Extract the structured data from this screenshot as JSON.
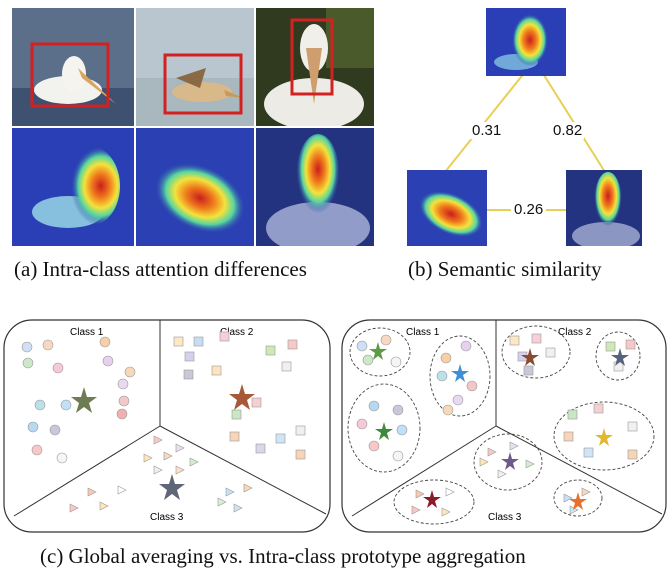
{
  "figure": {
    "panel_a": {
      "caption": "(a)  Intra-class attention differences",
      "images": [
        {
          "name": "pelicans-photo-1",
          "kind": "photo"
        },
        {
          "name": "pelicans-photo-2",
          "kind": "photo"
        },
        {
          "name": "pelicans-photo-3",
          "kind": "photo"
        },
        {
          "name": "pelicans-heatmap-1",
          "kind": "heatmap"
        },
        {
          "name": "pelicans-heatmap-2",
          "kind": "heatmap"
        },
        {
          "name": "pelicans-heatmap-3",
          "kind": "heatmap"
        }
      ]
    },
    "panel_b": {
      "caption": "(b)  Semantic similarity",
      "sim_top_left": "0.31",
      "sim_top_right": "0.82",
      "sim_bottom": "0.26"
    },
    "panel_c": {
      "caption": "(c)  Global averaging vs. Intra-class prototype aggregation",
      "left": {
        "class1": "Class 1",
        "class2": "Class 2",
        "class3": "Class 3"
      },
      "right": {
        "class1": "Class 1",
        "class2": "Class 2",
        "class3": "Class 3"
      }
    },
    "colors": {
      "box_red": "#d32020",
      "edge_yellow": "#e8cf55",
      "heat_blue": "#2a3fb5"
    }
  }
}
